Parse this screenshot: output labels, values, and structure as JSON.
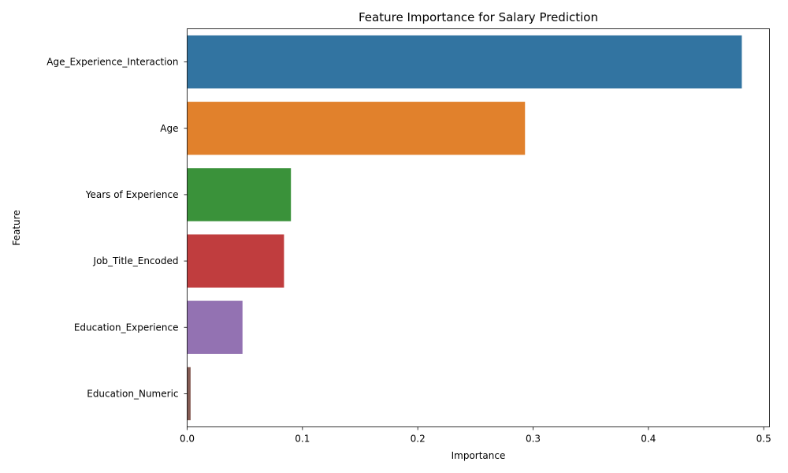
{
  "chart_data": {
    "type": "bar",
    "orientation": "horizontal",
    "title": "Feature Importance for Salary Prediction",
    "xlabel": "Importance",
    "ylabel": "Feature",
    "categories": [
      "Age_Experience_Interaction",
      "Age",
      "Years of Experience",
      "Job_Title_Encoded",
      "Education_Experience",
      "Education_Numeric"
    ],
    "values": [
      0.481,
      0.293,
      0.09,
      0.084,
      0.048,
      0.003
    ],
    "colors": [
      "#3274a1",
      "#e1812c",
      "#3a923a",
      "#c03d3e",
      "#9372b2",
      "#845b53"
    ],
    "xlim": [
      0,
      0.505
    ],
    "xticks": [
      0.0,
      0.1,
      0.2,
      0.3,
      0.4,
      0.5
    ],
    "xtick_labels": [
      "0.0",
      "0.1",
      "0.2",
      "0.3",
      "0.4",
      "0.5"
    ],
    "grid": false,
    "legend": "none"
  }
}
